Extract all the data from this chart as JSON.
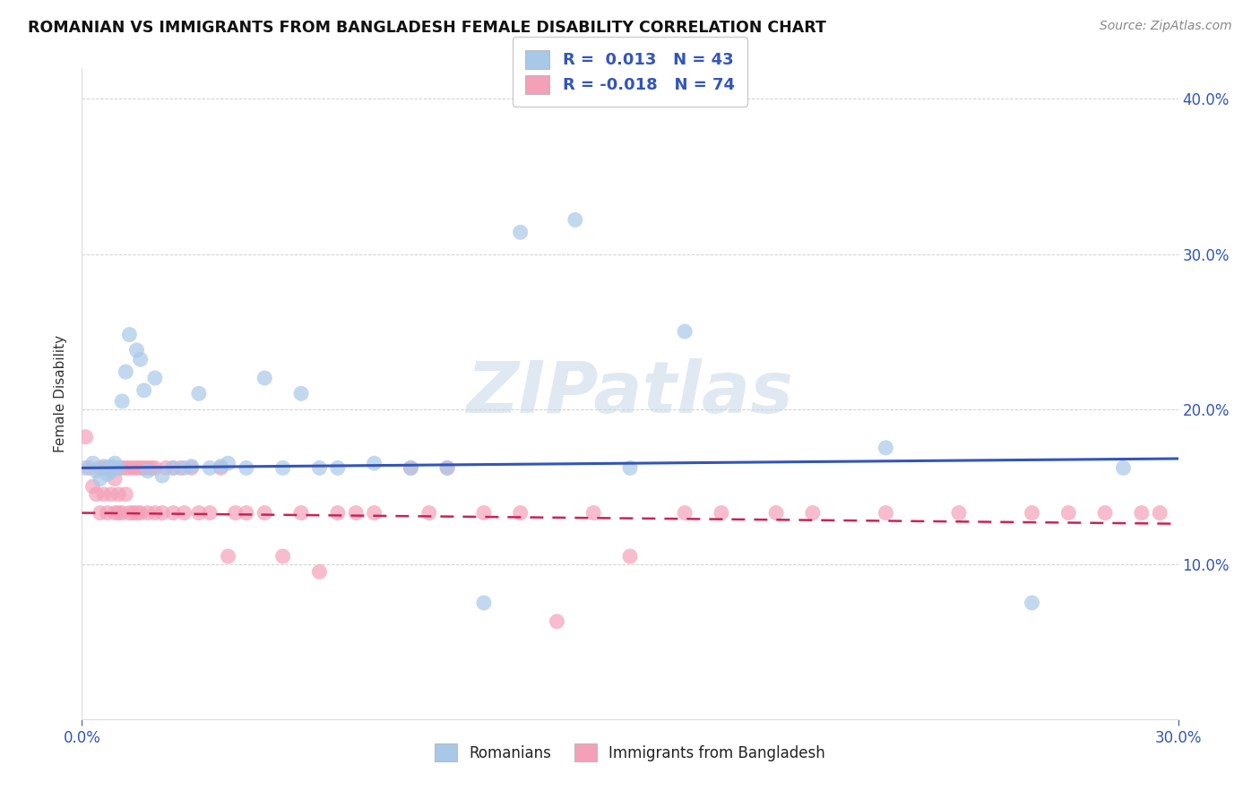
{
  "title": "ROMANIAN VS IMMIGRANTS FROM BANGLADESH FEMALE DISABILITY CORRELATION CHART",
  "source": "Source: ZipAtlas.com",
  "ylabel_label": "Female Disability",
  "x_min": 0.0,
  "x_max": 0.3,
  "y_min": 0.0,
  "y_max": 0.42,
  "color_romanian": "#a8c8e8",
  "color_bangladesh": "#f4a0b8",
  "color_line_romanian": "#3355bb",
  "color_line_bangladesh": "#cc2255",
  "watermark": "ZIPatlas",
  "rom_line_start_y": 0.162,
  "rom_line_end_y": 0.168,
  "ban_line_start_y": 0.133,
  "ban_line_end_y": 0.126,
  "romanians_x": [
    0.001,
    0.003,
    0.004,
    0.005,
    0.006,
    0.007,
    0.008,
    0.008,
    0.009,
    0.01,
    0.011,
    0.012,
    0.013,
    0.015,
    0.016,
    0.017,
    0.018,
    0.02,
    0.022,
    0.025,
    0.028,
    0.03,
    0.032,
    0.035,
    0.038,
    0.04,
    0.045,
    0.05,
    0.055,
    0.06,
    0.065,
    0.07,
    0.08,
    0.09,
    0.1,
    0.11,
    0.12,
    0.135,
    0.15,
    0.165,
    0.22,
    0.26,
    0.285
  ],
  "romanians_y": [
    0.162,
    0.165,
    0.16,
    0.155,
    0.163,
    0.158,
    0.16,
    0.163,
    0.165,
    0.162,
    0.205,
    0.224,
    0.248,
    0.238,
    0.232,
    0.212,
    0.16,
    0.22,
    0.157,
    0.162,
    0.162,
    0.163,
    0.21,
    0.162,
    0.163,
    0.165,
    0.162,
    0.22,
    0.162,
    0.21,
    0.162,
    0.162,
    0.165,
    0.162,
    0.162,
    0.075,
    0.314,
    0.322,
    0.162,
    0.25,
    0.175,
    0.075,
    0.162
  ],
  "bangladesh_x": [
    0.001,
    0.002,
    0.003,
    0.004,
    0.005,
    0.005,
    0.006,
    0.006,
    0.007,
    0.007,
    0.008,
    0.008,
    0.009,
    0.009,
    0.01,
    0.01,
    0.01,
    0.011,
    0.011,
    0.012,
    0.012,
    0.013,
    0.013,
    0.014,
    0.014,
    0.015,
    0.015,
    0.016,
    0.016,
    0.017,
    0.018,
    0.018,
    0.019,
    0.02,
    0.02,
    0.022,
    0.023,
    0.025,
    0.025,
    0.027,
    0.028,
    0.03,
    0.032,
    0.035,
    0.038,
    0.04,
    0.042,
    0.045,
    0.05,
    0.055,
    0.06,
    0.065,
    0.07,
    0.075,
    0.08,
    0.09,
    0.095,
    0.1,
    0.11,
    0.12,
    0.13,
    0.14,
    0.15,
    0.165,
    0.175,
    0.19,
    0.2,
    0.22,
    0.24,
    0.26,
    0.27,
    0.28,
    0.29,
    0.295
  ],
  "bangladesh_y": [
    0.182,
    0.162,
    0.15,
    0.145,
    0.162,
    0.133,
    0.162,
    0.145,
    0.162,
    0.133,
    0.162,
    0.145,
    0.155,
    0.133,
    0.162,
    0.133,
    0.145,
    0.162,
    0.133,
    0.145,
    0.162,
    0.162,
    0.133,
    0.162,
    0.133,
    0.162,
    0.133,
    0.162,
    0.133,
    0.162,
    0.162,
    0.133,
    0.162,
    0.133,
    0.162,
    0.133,
    0.162,
    0.162,
    0.133,
    0.162,
    0.133,
    0.162,
    0.133,
    0.133,
    0.162,
    0.105,
    0.133,
    0.133,
    0.133,
    0.105,
    0.133,
    0.095,
    0.133,
    0.133,
    0.133,
    0.162,
    0.133,
    0.162,
    0.133,
    0.133,
    0.063,
    0.133,
    0.105,
    0.133,
    0.133,
    0.133,
    0.133,
    0.133,
    0.133,
    0.133,
    0.133,
    0.133,
    0.133,
    0.133
  ]
}
